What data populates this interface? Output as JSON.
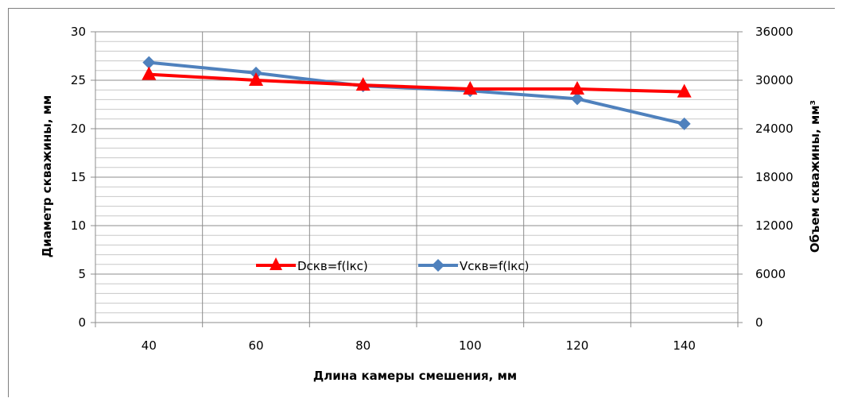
{
  "chart_data": {
    "type": "line",
    "categories": [
      "40",
      "60",
      "80",
      "100",
      "120",
      "140"
    ],
    "xlabel": "Длина камеры смешения, мм",
    "ylabel_left": "Диаметр скважины, мм",
    "ylabel_right": "Объем скважины, мм³",
    "ylim_left": [
      0,
      30
    ],
    "yticks_left": [
      "0",
      "5",
      "10",
      "15",
      "20",
      "25",
      "30"
    ],
    "ylim_right": [
      0,
      36000
    ],
    "yticks_right": [
      "0",
      "6000",
      "12000",
      "18000",
      "24000",
      "30000",
      "36000"
    ],
    "grid": true,
    "legend_position": "bottom-center inside plot",
    "series": [
      {
        "name": "Dскв=f(lкс)",
        "axis": "left",
        "marker": "triangle",
        "color": "#ff0000",
        "values": [
          25.6,
          25.0,
          24.5,
          24.1,
          24.1,
          23.8
        ]
      },
      {
        "name": "Vскв=f(lкс)",
        "axis": "right",
        "marker": "diamond",
        "color": "#4f81bd",
        "values": [
          32200,
          30900,
          29300,
          28700,
          27700,
          24600
        ]
      }
    ]
  }
}
